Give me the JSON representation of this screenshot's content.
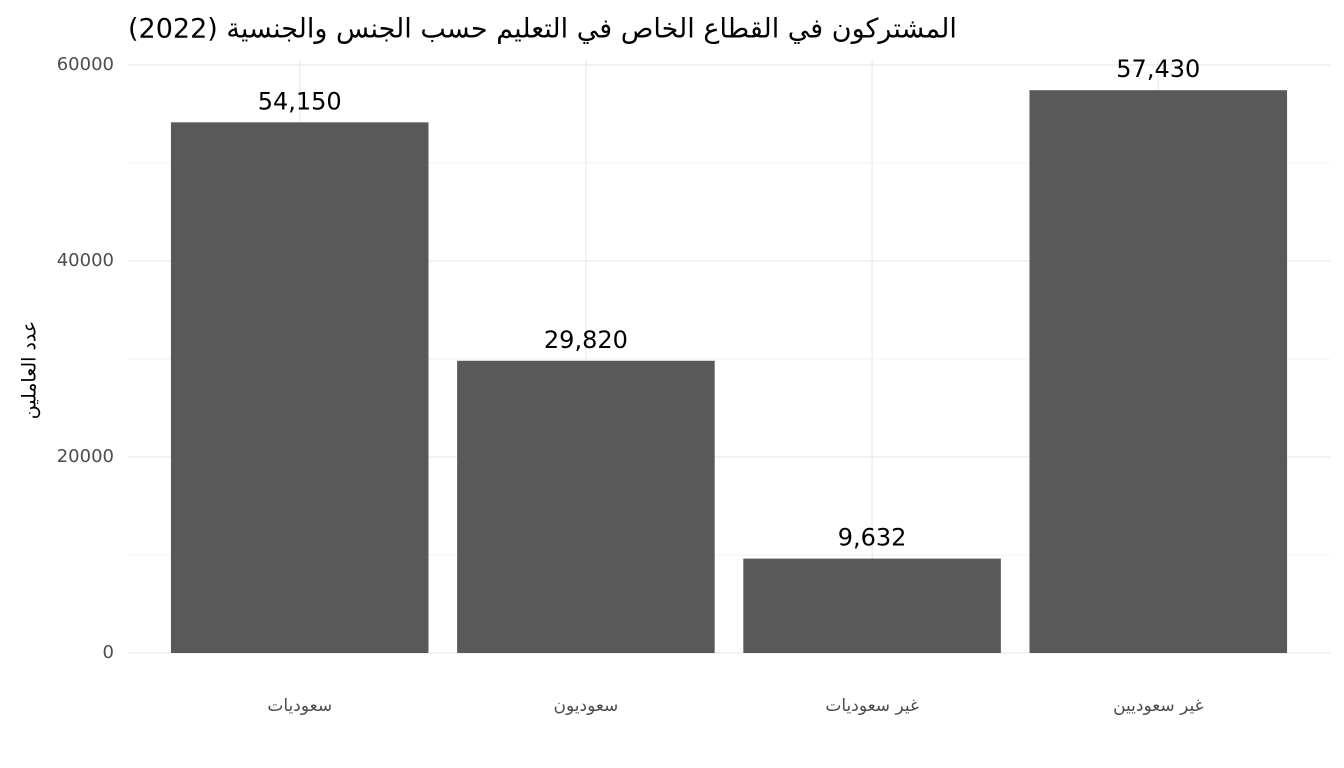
{
  "chart_data": {
    "type": "bar",
    "title": "المشتركون في القطاع الخاص في التعليم حسب الجنس والجنسية (2022)",
    "y_label": "عدد العاملين",
    "categories": [
      "سعوديات",
      "سعوديون",
      "غير سعوديات",
      "غير سعوديين"
    ],
    "values": [
      54150,
      29820,
      9632,
      57430
    ],
    "value_labels": [
      "54,150",
      "29,820",
      "9,632",
      "57,430"
    ],
    "color": "#595959",
    "ylim": [
      0,
      60000
    ],
    "yticks": [
      0,
      20000,
      40000,
      60000
    ],
    "grid": true
  }
}
